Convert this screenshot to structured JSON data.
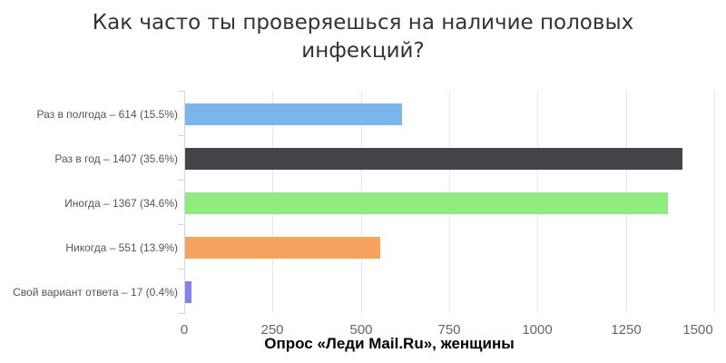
{
  "chart_data": {
    "type": "bar",
    "orientation": "horizontal",
    "title": "Как часто ты проверяешься на наличие половых инфекций?",
    "title_lines": [
      "Как часто ты проверяешься на наличие половых",
      "инфекций?"
    ],
    "footer": "Опрос «Леди Mail.Ru», женщины",
    "categories": [
      "Раз в полгода",
      "Раз в год",
      "Иногда",
      "Никогда",
      "Свой вариант ответа"
    ],
    "values": [
      614,
      1407,
      1367,
      551,
      17
    ],
    "percentages": [
      "15.5%",
      "35.6%",
      "34.6%",
      "13.9%",
      "0.4%"
    ],
    "category_labels": [
      "Раз в полгода – 614 (15.5%)",
      "Раз в год – 1407 (35.6%)",
      "Иногда – 1367 (34.6%)",
      "Никогда – 551 (13.9%)",
      "Свой вариант ответа – 17 (0.4%)"
    ],
    "bar_colors": [
      "#7cb5ec",
      "#434348",
      "#90ed7d",
      "#f7a35c",
      "#8085e9"
    ],
    "xticks": [
      0,
      250,
      500,
      750,
      1000,
      1250,
      1500
    ],
    "xtick_labels": [
      "0",
      "250",
      "500",
      "750",
      "1000",
      "1250",
      "1500"
    ],
    "xlim": [
      0,
      1500
    ],
    "xlabel": "",
    "ylabel": "",
    "grid": true,
    "legend": "none",
    "colors": {
      "gridline": "#e6e6e6",
      "axis_line": "#ccd6eb",
      "category_label": "#555555",
      "tick_label": "#666666",
      "title": "#333333",
      "footer": "#000000",
      "background": "#ffffff"
    }
  }
}
